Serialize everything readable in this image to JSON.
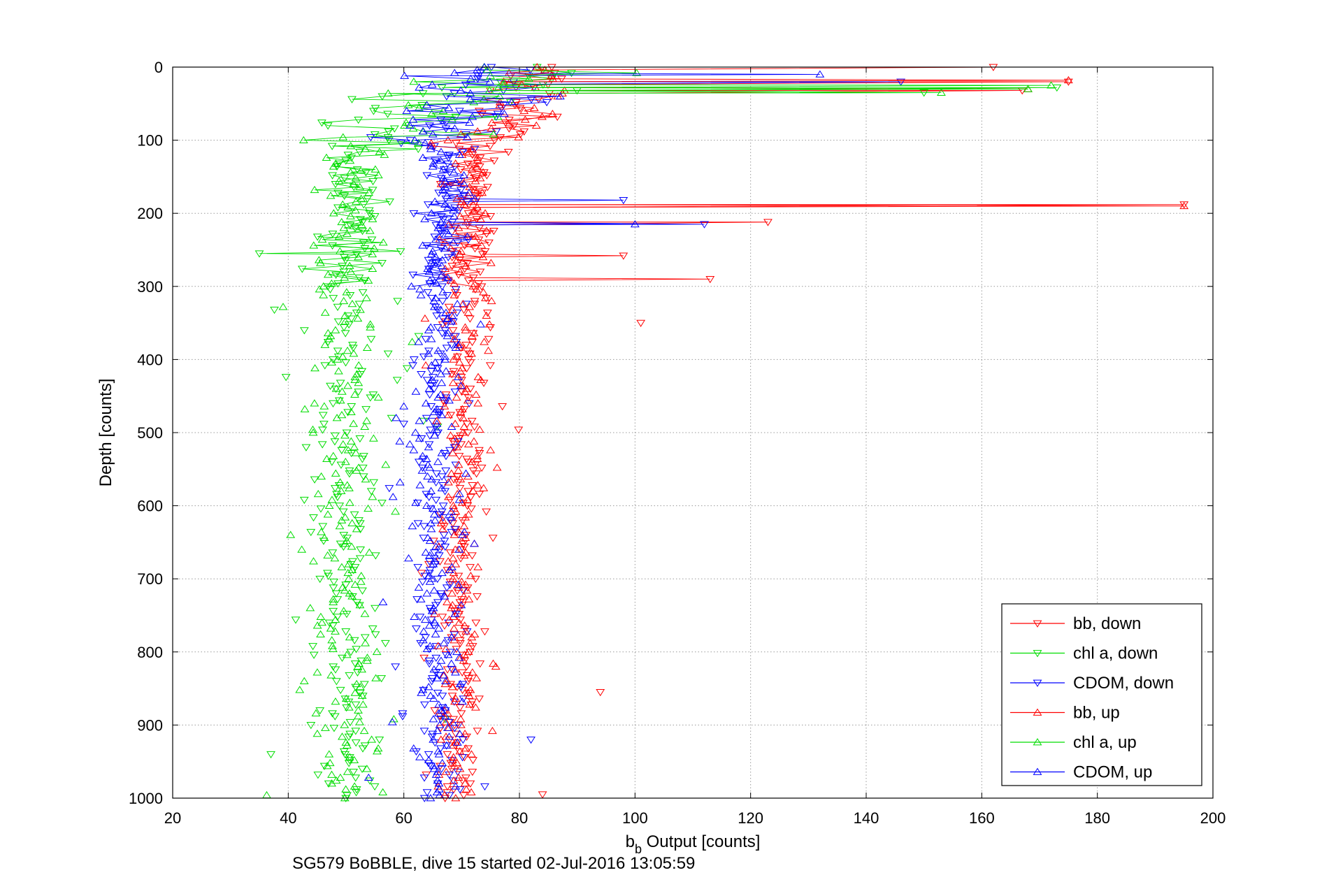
{
  "chart_data": {
    "type": "scatter",
    "title": "",
    "xlabel_main": "b",
    "xlabel_sub": "b",
    "xlabel_rest": " Output [counts]",
    "ylabel": "Depth [counts]",
    "xlim": [
      20,
      200
    ],
    "ylim": [
      0,
      1000
    ],
    "y_reversed": true,
    "grid": true,
    "x_ticks": [
      20,
      40,
      60,
      80,
      100,
      120,
      140,
      160,
      180,
      200
    ],
    "y_ticks": [
      0,
      100,
      200,
      300,
      400,
      500,
      600,
      700,
      800,
      900,
      1000
    ],
    "legend_position": "bottom-right",
    "series": [
      {
        "name": "bb, down",
        "color": "#ff0000",
        "marker": "triangle-down",
        "connected_until_depth": 300,
        "centers": [
          [
            0,
            80
          ],
          [
            60,
            82
          ],
          [
            100,
            73
          ],
          [
            300,
            71
          ],
          [
            1000,
            69
          ]
        ],
        "spread": 2.5,
        "spikes": [
          [
            0,
            162
          ],
          [
            20,
            175
          ],
          [
            32,
            167
          ],
          [
            188,
            195
          ],
          [
            212,
            123
          ],
          [
            258,
            98
          ],
          [
            290,
            113
          ],
          [
            350,
            101
          ],
          [
            855,
            94
          ],
          [
            995,
            84
          ]
        ]
      },
      {
        "name": "chl a, down",
        "color": "#00dd00",
        "marker": "triangle-down",
        "connected_until_depth": 300,
        "centers": [
          [
            0,
            85
          ],
          [
            60,
            64
          ],
          [
            100,
            52
          ],
          [
            300,
            50
          ],
          [
            1000,
            50
          ]
        ],
        "spread": 4,
        "spikes": [
          [
            28,
            173
          ],
          [
            35,
            150
          ],
          [
            255,
            35
          ],
          [
            940,
            37
          ]
        ]
      },
      {
        "name": "CDOM, down",
        "color": "#0000ff",
        "marker": "triangle-down",
        "connected_until_depth": 300,
        "centers": [
          [
            0,
            74
          ],
          [
            60,
            70
          ],
          [
            100,
            67
          ],
          [
            300,
            66
          ],
          [
            1000,
            66
          ]
        ],
        "spread": 3,
        "spikes": [
          [
            20,
            146
          ],
          [
            182,
            98
          ],
          [
            215,
            112
          ],
          [
            920,
            82
          ]
        ]
      },
      {
        "name": "bb, up",
        "color": "#ff0000",
        "marker": "triangle-up",
        "connected_until_depth": 300,
        "centers": [
          [
            0,
            82
          ],
          [
            60,
            80
          ],
          [
            100,
            72
          ],
          [
            300,
            71
          ],
          [
            1000,
            69
          ]
        ],
        "spread": 2.5,
        "spikes": [
          [
            18,
            175
          ],
          [
            30,
            168
          ],
          [
            190,
            195
          ]
        ]
      },
      {
        "name": "chl a, up",
        "color": "#00dd00",
        "marker": "triangle-up",
        "connected_until_depth": 300,
        "centers": [
          [
            0,
            88
          ],
          [
            60,
            63
          ],
          [
            100,
            52
          ],
          [
            300,
            50
          ],
          [
            1000,
            50
          ]
        ],
        "spread": 4,
        "spikes": [
          [
            25,
            172
          ],
          [
            30,
            168
          ],
          [
            35,
            153
          ]
        ]
      },
      {
        "name": "CDOM, up",
        "color": "#0000ff",
        "marker": "triangle-up",
        "connected_until_depth": 300,
        "centers": [
          [
            0,
            73
          ],
          [
            60,
            70
          ],
          [
            100,
            67
          ],
          [
            300,
            66
          ],
          [
            1000,
            66
          ]
        ],
        "spread": 3,
        "spikes": [
          [
            10,
            132
          ],
          [
            215,
            100
          ]
        ]
      }
    ]
  },
  "caption": "SG579 BoBBLE, dive 15 started 02-Jul-2016 13:05:59"
}
